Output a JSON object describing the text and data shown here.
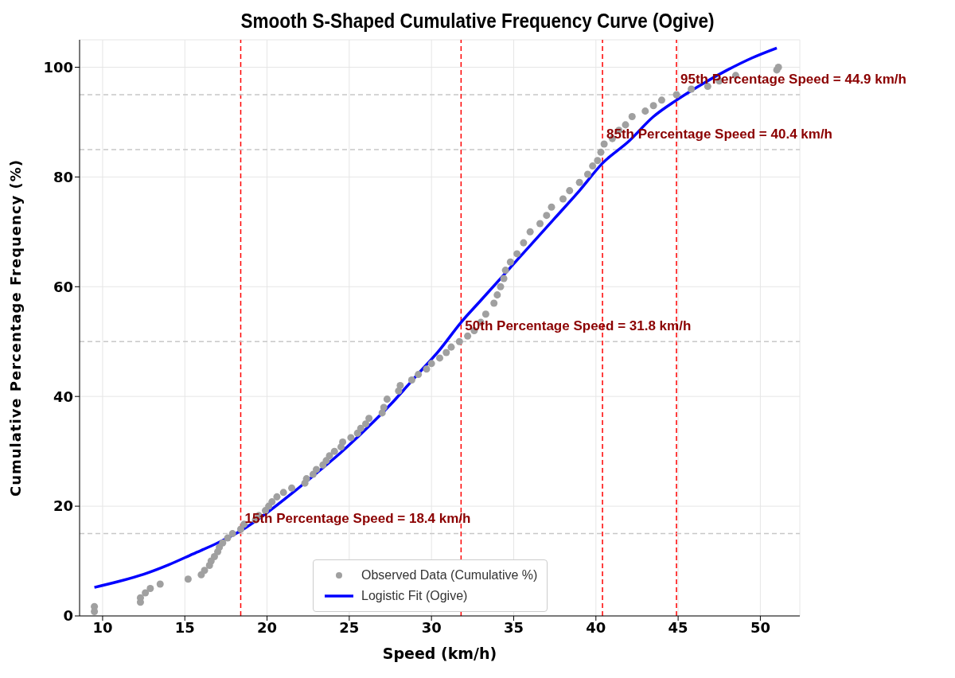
{
  "chart_data": {
    "type": "scatter",
    "title": "Smooth S-Shaped Cumulative Frequency Curve (Ogive)",
    "xlabel": "Speed (km/h)",
    "ylabel": "Cumulative Percentage Frequency (%)",
    "xlim": [
      8.6,
      52.4
    ],
    "xticks": [
      10,
      15,
      20,
      25,
      30,
      35,
      40,
      45,
      50
    ],
    "ylim": [
      0,
      105
    ],
    "yticks": [
      0,
      20,
      40,
      60,
      80,
      100
    ],
    "grid": true,
    "legend": "bottom",
    "series": [
      {
        "name": "Observed Data (Cumulative %)",
        "type": "scatter",
        "color": "#a0a0a0",
        "marker": "circle",
        "x": [
          9.5,
          9.5,
          12.3,
          12.3,
          12.6,
          12.9,
          13.5,
          15.2,
          16,
          16.2,
          16.5,
          16.6,
          16.8,
          17,
          17.1,
          17.3,
          17.6,
          17.9,
          18.4,
          18.6,
          19.3,
          19.5,
          19.9,
          20.1,
          20.3,
          20.6,
          21,
          21.5,
          22.3,
          22.4,
          22.8,
          23,
          23.4,
          23.6,
          23.8,
          24.1,
          24.5,
          24.6,
          25.1,
          25.5,
          25.7,
          26,
          26.2,
          27,
          27.1,
          27.3,
          28,
          28.1,
          28.8,
          29.2,
          29.7,
          30,
          30.5,
          30.9,
          31.2,
          31.7,
          32.2,
          32.6,
          33,
          33.3,
          33.8,
          34,
          34.2,
          34.4,
          34.5,
          34.8,
          35.2,
          35.6,
          36,
          36.6,
          37,
          37.3,
          38,
          38.4,
          39,
          39.5,
          39.8,
          40.1,
          40.3,
          40.5,
          41,
          41.4,
          41.8,
          42.2,
          43,
          43.5,
          44,
          44.9,
          45.8,
          46.8,
          47.5,
          48.5,
          51,
          51.1
        ],
        "values": [
          0.8,
          1.7,
          2.5,
          3.3,
          4.2,
          5,
          5.8,
          6.7,
          7.5,
          8.3,
          9.2,
          10,
          10.8,
          11.7,
          12.5,
          13.3,
          14.2,
          15,
          15.8,
          16.7,
          17.5,
          18.3,
          19.2,
          20,
          20.8,
          21.7,
          22.5,
          23.3,
          24.2,
          25,
          25.8,
          26.7,
          27.5,
          28.3,
          29.2,
          30,
          30.8,
          31.7,
          32.5,
          33.3,
          34.2,
          35,
          36,
          37,
          38,
          39.5,
          41,
          42,
          43,
          44,
          45,
          46,
          47,
          48,
          49,
          50,
          51,
          52,
          53.5,
          55,
          57,
          58.5,
          60,
          61.5,
          63,
          64.5,
          66,
          68,
          70,
          71.5,
          73,
          74.5,
          76,
          77.5,
          79,
          80.5,
          82,
          83,
          84.5,
          86,
          87,
          88.5,
          89.5,
          91,
          92,
          93,
          94,
          95,
          96,
          96.5,
          97.5,
          98.5,
          99.5,
          100
        ]
      },
      {
        "name": "Logistic Fit (Ogive)",
        "type": "line",
        "color": "#0000ff",
        "marker": "none",
        "line_style": "solid",
        "x": [
          9.5,
          11,
          12.5,
          14,
          15.5,
          17,
          18.4,
          20,
          21.5,
          23,
          24.5,
          26,
          27.5,
          29,
          30.5,
          31.8,
          33,
          34.5,
          36,
          37.5,
          39,
          40.4,
          42,
          43.5,
          44.9,
          46.5,
          48,
          49.5,
          51
        ],
        "values": [
          5.2,
          6.3,
          7.6,
          9.3,
          11.3,
          13.3,
          15.5,
          18.8,
          22.3,
          26,
          29.8,
          34,
          38.5,
          43.5,
          48.5,
          53.5,
          57.5,
          62.5,
          67.5,
          72.5,
          77.5,
          82.5,
          86.5,
          91,
          94,
          97,
          99.5,
          101.7,
          103.5
        ]
      }
    ],
    "ref_lines": [
      {
        "axis": "x",
        "value": 18.4,
        "color": "#ff0000",
        "line_style": "dashed"
      },
      {
        "axis": "x",
        "value": 31.8,
        "color": "#ff0000",
        "line_style": "dashed"
      },
      {
        "axis": "x",
        "value": 40.4,
        "color": "#ff0000",
        "line_style": "dashed"
      },
      {
        "axis": "x",
        "value": 44.9,
        "color": "#ff0000",
        "line_style": "dashed"
      },
      {
        "axis": "y",
        "value": 15,
        "color": "#c8c8c8",
        "line_style": "dashed"
      },
      {
        "axis": "y",
        "value": 50,
        "color": "#c8c8c8",
        "line_style": "dashed"
      },
      {
        "axis": "y",
        "value": 85,
        "color": "#c8c8c8",
        "line_style": "dashed"
      },
      {
        "axis": "y",
        "value": 95,
        "color": "#c8c8c8",
        "line_style": "dashed"
      }
    ],
    "annotations": [
      {
        "text": "15th Percentage Speed = 18.4 km/h",
        "x": 18.4,
        "y": 15
      },
      {
        "text": "50th Percentage Speed = 31.8 km/h",
        "x": 31.8,
        "y": 50
      },
      {
        "text": "85th Percentage Speed = 40.4 km/h",
        "x": 40.4,
        "y": 85
      },
      {
        "text": "95th Percentage Speed = 44.9 km/h",
        "x": 44.9,
        "y": 95
      }
    ]
  }
}
